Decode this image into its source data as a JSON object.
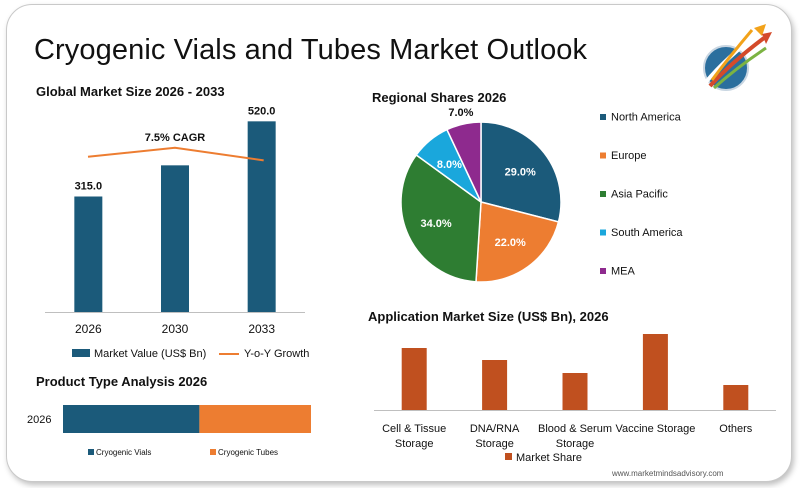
{
  "page": {
    "title": "Cryogenic Vials and Tubes Market Outlook",
    "watermark": "www.marketmindsadvisory.com"
  },
  "colors": {
    "navy": "#1b5a7a",
    "orange": "#ed7d31",
    "rust": "#c0501f",
    "green": "#2e7d32",
    "cyan": "#1aa7dc",
    "purple": "#8e2a8e"
  },
  "chart_data": [
    {
      "id": "global",
      "type": "bar",
      "title": "Global Market Size 2026 - 2033",
      "categories": [
        "2026",
        "2030",
        "2033"
      ],
      "series": [
        {
          "name": "Market Value (US$ Bn)",
          "values": [
            315.0,
            400.0,
            520.0
          ],
          "labels": [
            "315.0",
            "",
            "520.0"
          ],
          "color": "#1b5a7a"
        },
        {
          "name": "Y-o-Y Growth",
          "type": "line",
          "values": [
            7.4,
            7.9,
            7.2
          ],
          "color": "#ed7d31"
        }
      ],
      "annotation": "7.5% CAGR",
      "ylim": [
        0,
        600
      ]
    },
    {
      "id": "regional",
      "type": "pie",
      "title": "Regional Shares 2026",
      "slices": [
        {
          "name": "North America",
          "value": 29.0,
          "label": "29.0%",
          "color": "#1b5a7a"
        },
        {
          "name": "Europe",
          "value": 22.0,
          "label": "22.0%",
          "color": "#ed7d31"
        },
        {
          "name": "Asia Pacific",
          "value": 34.0,
          "label": "34.0%",
          "color": "#2e7d32"
        },
        {
          "name": "South America",
          "value": 8.0,
          "label": "8.0%",
          "color": "#1aa7dc"
        },
        {
          "name": "MEA",
          "value": 7.0,
          "label": "7.0%",
          "color": "#8e2a8e"
        }
      ]
    },
    {
      "id": "product",
      "type": "bar",
      "orientation": "horizontal-stacked",
      "title": "Product Type Analysis 2026",
      "categories": [
        "2026"
      ],
      "series": [
        {
          "name": "Cryogenic Vials",
          "values": [
            55
          ],
          "color": "#1b5a7a"
        },
        {
          "name": "Cryogenic Tubes",
          "values": [
            45
          ],
          "color": "#ed7d31"
        }
      ],
      "xlim": [
        0,
        100
      ]
    },
    {
      "id": "application",
      "type": "bar",
      "title": "Application Market Size (US$ Bn), 2026",
      "categories": [
        [
          "Cell & Tissue",
          "Storage"
        ],
        [
          "DNA/RNA",
          "Storage"
        ],
        [
          "Blood & Serum",
          "Storage"
        ],
        [
          "Vaccine Storage"
        ],
        [
          "Others"
        ]
      ],
      "series": [
        {
          "name": "Market Share",
          "values": [
            62,
            50,
            37,
            76,
            25
          ],
          "color": "#c0501f"
        }
      ],
      "ylim": [
        0,
        85
      ]
    }
  ]
}
